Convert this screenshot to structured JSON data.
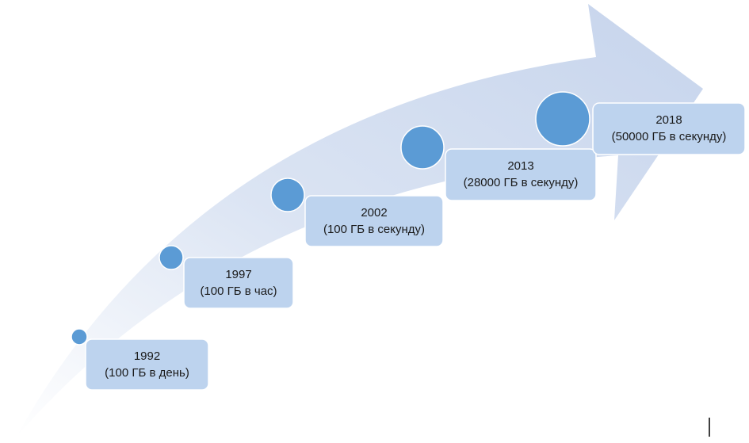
{
  "milestones": [
    {
      "year": "1992",
      "label": "(100 ГБ в день)"
    },
    {
      "year": "1997",
      "label": "(100 ГБ в час)"
    },
    {
      "year": "2002",
      "label": "(100 ГБ в секунду)"
    },
    {
      "year": "2013",
      "label": "(28000 ГБ в секунду)"
    },
    {
      "year": "2018",
      "label": "(50000 ГБ в секунду)"
    }
  ]
}
